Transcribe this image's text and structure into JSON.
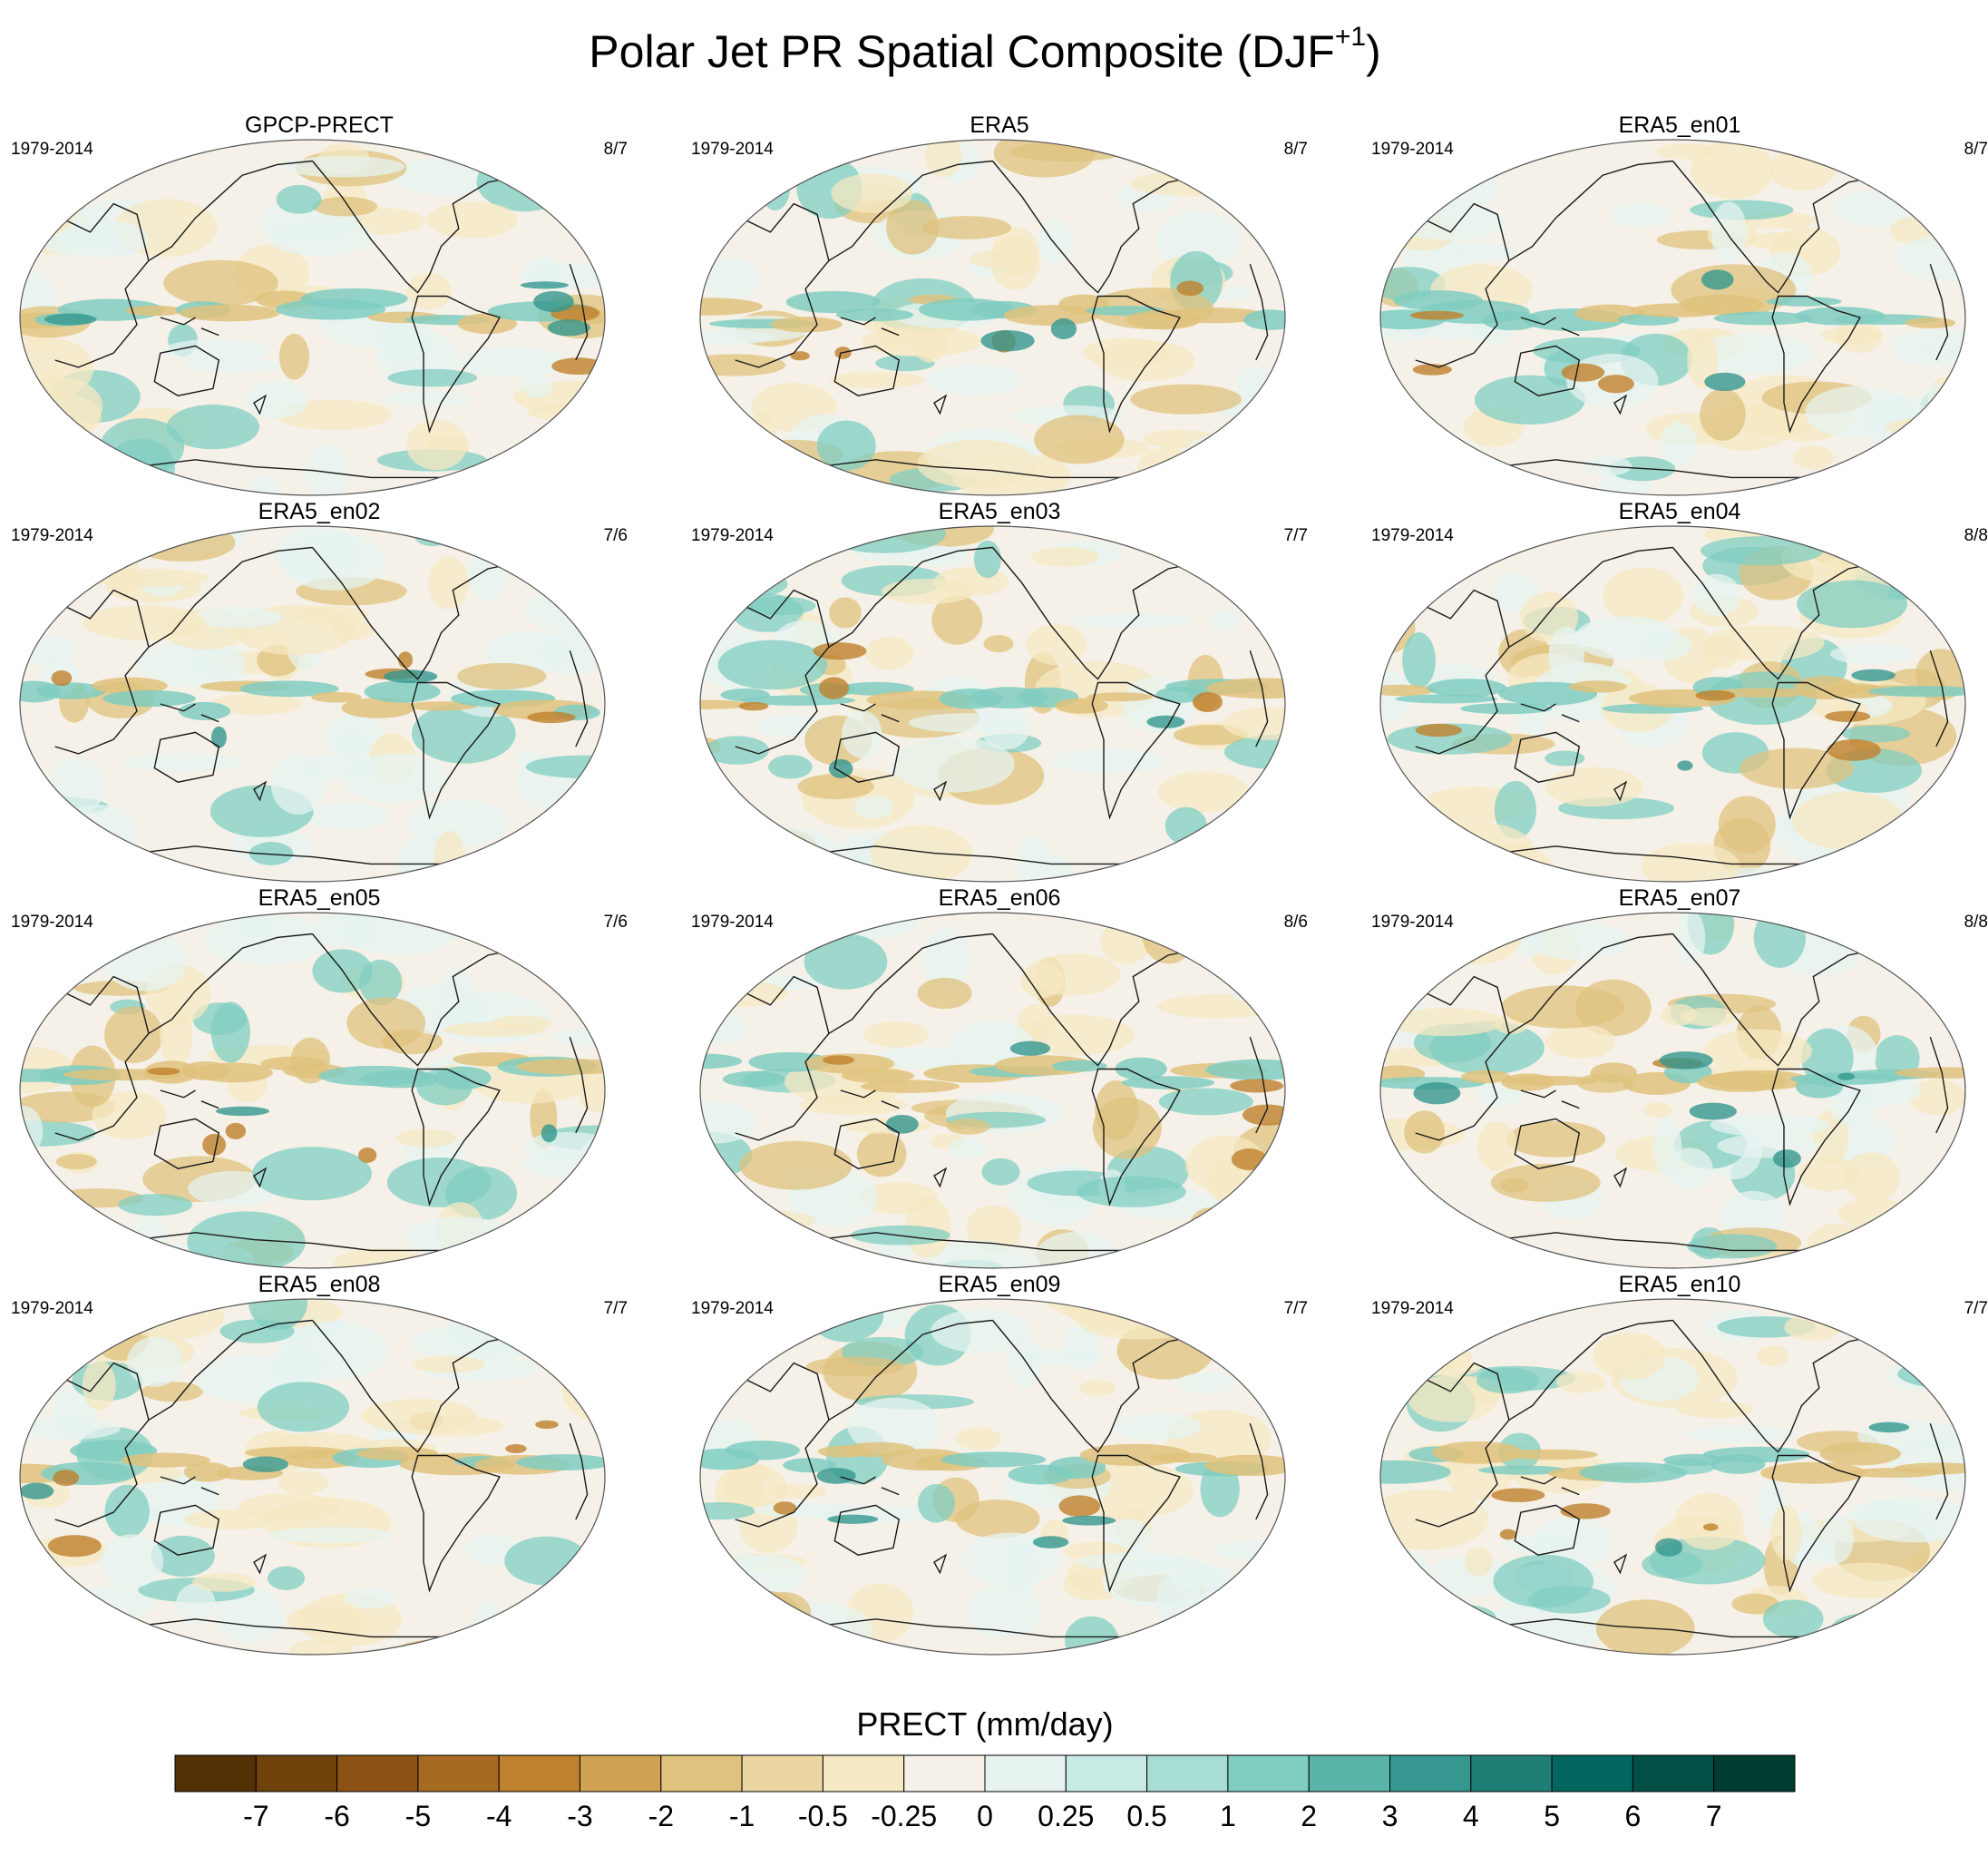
{
  "title": {
    "main": "Polar Jet PR Spatial Composite (DJF",
    "superscript": "+1",
    "close": ")"
  },
  "panels": [
    {
      "title": "GPCP-PRECT",
      "years": "1979-2014",
      "count": "8/7"
    },
    {
      "title": "ERA5",
      "years": "1979-2014",
      "count": "8/7"
    },
    {
      "title": "ERA5_en01",
      "years": "1979-2014",
      "count": "8/7"
    },
    {
      "title": "ERA5_en02",
      "years": "1979-2014",
      "count": "7/6"
    },
    {
      "title": "ERA5_en03",
      "years": "1979-2014",
      "count": "7/7"
    },
    {
      "title": "ERA5_en04",
      "years": "1979-2014",
      "count": "8/8"
    },
    {
      "title": "ERA5_en05",
      "years": "1979-2014",
      "count": "7/6"
    },
    {
      "title": "ERA5_en06",
      "years": "1979-2014",
      "count": "8/6"
    },
    {
      "title": "ERA5_en07",
      "years": "1979-2014",
      "count": "8/8"
    },
    {
      "title": "ERA5_en08",
      "years": "1979-2014",
      "count": "7/7"
    },
    {
      "title": "ERA5_en09",
      "years": "1979-2014",
      "count": "7/7"
    },
    {
      "title": "ERA5_en10",
      "years": "1979-2014",
      "count": "7/7"
    }
  ],
  "colorbar": {
    "title": "PRECT (mm/day)",
    "labels": [
      "-7",
      "-6",
      "-5",
      "-4",
      "-3",
      "-2",
      "-1",
      "-0.5",
      "-0.25",
      "0",
      "0.25",
      "0.5",
      "1",
      "2",
      "3",
      "4",
      "5",
      "6",
      "7"
    ],
    "colors": [
      "#543005",
      "#6f420c",
      "#8c5214",
      "#a66a21",
      "#bf812d",
      "#cfa352",
      "#dfc27d",
      "#ebd6a2",
      "#f6e8c3",
      "#f5f1e8",
      "#e6f3f0",
      "#c7eae5",
      "#a8ddd4",
      "#80cdc1",
      "#5ab4a9",
      "#35978f",
      "#1f7f77",
      "#01665e",
      "#005046",
      "#003c30"
    ]
  },
  "map_colors": {
    "background": "#f5f1e8",
    "dry_strong": "#bf812d",
    "dry": "#dfc27d",
    "dry_weak": "#f6e8c3",
    "wet_weak": "#e6f3f0",
    "wet": "#80cdc1",
    "wet_strong": "#35978f",
    "coast": "#1a1a1a",
    "outline": "#555555"
  }
}
